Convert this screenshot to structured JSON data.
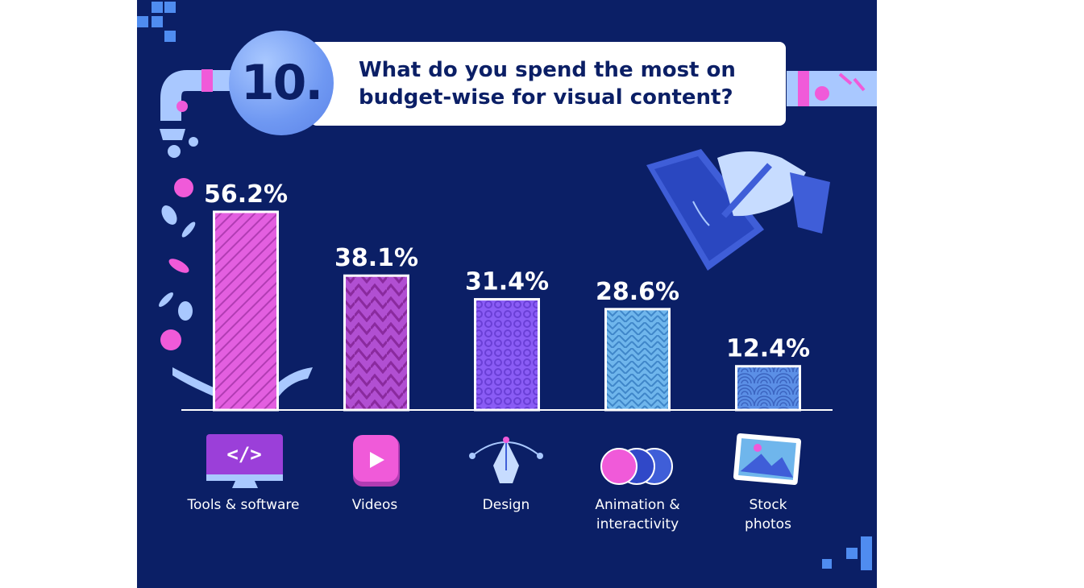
{
  "question": {
    "number": "10.",
    "title": "What do you spend the most on budget-wise for visual content?"
  },
  "chart_data": {
    "type": "bar",
    "categories": [
      "Tools & software",
      "Videos",
      "Design",
      "Animation & interactivity",
      "Stock photos"
    ],
    "values": [
      56.2,
      38.1,
      31.4,
      28.6,
      12.4
    ],
    "value_labels": [
      "56.2%",
      "38.1%",
      "31.4%",
      "28.6%",
      "12.4%"
    ],
    "ylim": [
      0,
      60
    ],
    "grid": false,
    "legend": "none",
    "bar_colors": [
      "#e35fe0",
      "#b14fd2",
      "#8a5cf5",
      "#6fb6ec",
      "#5b8fe6"
    ]
  },
  "colors": {
    "background": "#0b1f66",
    "accent_blue": "#6f98f2",
    "accent_pink": "#f05ad9"
  },
  "icons": [
    "code-monitor-icon",
    "video-play-icon",
    "pen-tool-icon",
    "overlapping-circles-icon",
    "photo-icon",
    "pipe-icon",
    "money-icon",
    "tablet-hand-icon"
  ]
}
